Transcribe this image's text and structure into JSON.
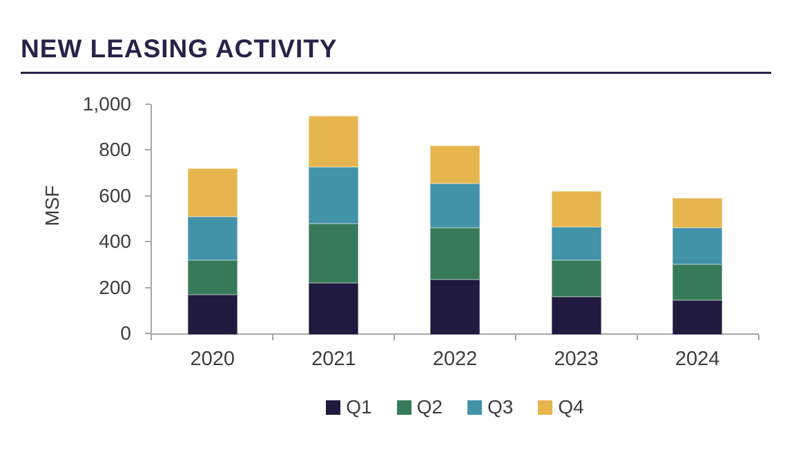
{
  "header": {
    "title": "NEW LEASING ACTIVITY"
  },
  "colors": {
    "title": "#272347",
    "rule": "#272347",
    "axis": "#a6a6a6",
    "tick_text": "#3d3d3d",
    "background": "#ffffff"
  },
  "chart_data": {
    "type": "bar",
    "stacked": true,
    "title": "NEW LEASING ACTIVITY",
    "xlabel": "",
    "ylabel": "MSF",
    "ylim": [
      0,
      1000
    ],
    "grid": false,
    "legend_position": "bottom",
    "categories": [
      "2020",
      "2021",
      "2022",
      "2023",
      "2024"
    ],
    "series": [
      {
        "name": "Q1",
        "color": "#201a3e",
        "values": [
          170,
          220,
          235,
          160,
          145
        ]
      },
      {
        "name": "Q2",
        "color": "#377a59",
        "values": [
          150,
          260,
          225,
          160,
          155
        ]
      },
      {
        "name": "Q3",
        "color": "#4292a8",
        "values": [
          190,
          245,
          195,
          145,
          160
        ]
      },
      {
        "name": "Q4",
        "color": "#e6b54e",
        "values": [
          210,
          225,
          165,
          155,
          130
        ]
      }
    ],
    "yticks": [
      {
        "value": 0,
        "label": "0"
      },
      {
        "value": 200,
        "label": "200"
      },
      {
        "value": 400,
        "label": "400"
      },
      {
        "value": 600,
        "label": "600"
      },
      {
        "value": 800,
        "label": "800"
      },
      {
        "value": 1000,
        "label": "1,000"
      }
    ]
  }
}
